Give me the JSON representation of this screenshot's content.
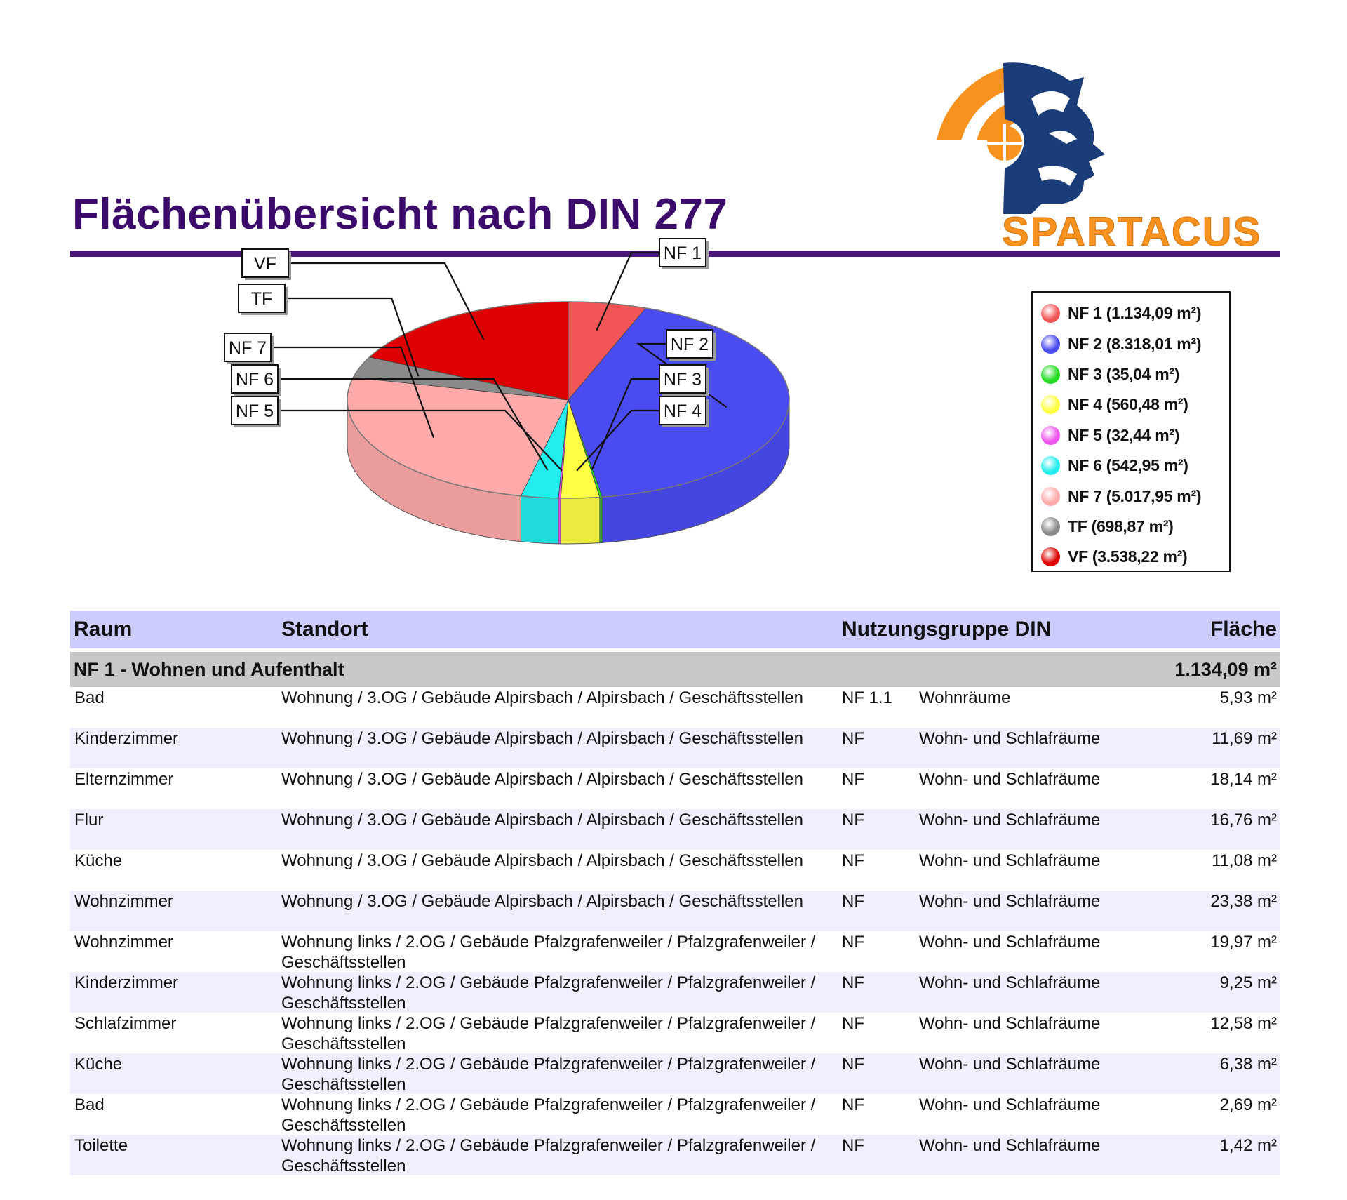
{
  "header": {
    "title": "Flächenübersicht nach DIN 277",
    "logo_text": "SPARTACUS"
  },
  "colors": {
    "title": "#3b0a6b",
    "rule": "#4a1578",
    "logo_orange": "#f7921e",
    "logo_blue": "#1a3d7a",
    "table_header_bg": "#ccccff",
    "group_bg": "#c8c8c8",
    "row_alt_bg": "#efefff"
  },
  "chart_data": {
    "type": "pie",
    "categories": [
      "NF 1",
      "NF 2",
      "NF 3",
      "NF 4",
      "NF 5",
      "NF 6",
      "NF 7",
      "TF",
      "VF"
    ],
    "values": [
      1134.09,
      8318.01,
      35.04,
      560.48,
      32.44,
      542.95,
      5017.95,
      698.87,
      3538.22
    ],
    "unit": "m²",
    "colors": [
      "#f25555",
      "#4b4bf2",
      "#22dd22",
      "#ffff44",
      "#ee55ee",
      "#22eeee",
      "#ffaaaa",
      "#8a8a8a",
      "#dd0000"
    ],
    "legend": [
      "NF 1 (1.134,09 m²)",
      "NF 2 (8.318,01 m²)",
      "NF 3 (35,04 m²)",
      "NF 4 (560,48 m²)",
      "NF 5 (32,44 m²)",
      "NF 6 (542,95 m²)",
      "NF 7 (5.017,95 m²)",
      "TF (698,87 m²)",
      "VF (3.538,22 m²)"
    ],
    "slice_labels": [
      "NF 1",
      "NF 2",
      "NF 3",
      "NF 4",
      "NF 5",
      "NF 6",
      "NF 7",
      "TF",
      "VF"
    ],
    "legend_placement": "right",
    "style": "3d"
  },
  "table": {
    "headers": {
      "raum": "Raum",
      "standort": "Standort",
      "nutzungsgruppe": "Nutzungsgruppe DIN",
      "flaeche": "Fläche"
    },
    "group": {
      "label": "NF 1 - Wohnen und Aufenthalt",
      "total": "1.134,09 m²"
    },
    "rows": [
      {
        "raum": "Bad",
        "standort": "Wohnung / 3.OG / Gebäude Alpirsbach / Alpirsbach / Geschäftsstellen",
        "code": "NF 1.1",
        "desc": "Wohnräume",
        "area": "5,93 m²"
      },
      {
        "raum": "Kinderzimmer",
        "standort": "Wohnung / 3.OG / Gebäude Alpirsbach / Alpirsbach / Geschäftsstellen",
        "code": "NF",
        "desc": "Wohn- und Schlafräume",
        "area": "11,69 m²"
      },
      {
        "raum": "Elternzimmer",
        "standort": "Wohnung / 3.OG / Gebäude Alpirsbach / Alpirsbach / Geschäftsstellen",
        "code": "NF",
        "desc": "Wohn- und Schlafräume",
        "area": "18,14 m²"
      },
      {
        "raum": "Flur",
        "standort": "Wohnung / 3.OG / Gebäude Alpirsbach / Alpirsbach / Geschäftsstellen",
        "code": "NF",
        "desc": "Wohn- und Schlafräume",
        "area": "16,76 m²"
      },
      {
        "raum": "Küche",
        "standort": "Wohnung / 3.OG / Gebäude Alpirsbach / Alpirsbach / Geschäftsstellen",
        "code": "NF",
        "desc": "Wohn- und Schlafräume",
        "area": "11,08 m²"
      },
      {
        "raum": "Wohnzimmer",
        "standort": "Wohnung / 3.OG / Gebäude Alpirsbach / Alpirsbach / Geschäftsstellen",
        "code": "NF",
        "desc": "Wohn- und Schlafräume",
        "area": "23,38 m²"
      },
      {
        "raum": "Wohnzimmer",
        "standort": "Wohnung links / 2.OG / Gebäude Pfalzgrafenweiler / Pfalzgrafenweiler / Geschäftsstellen",
        "code": "NF",
        "desc": "Wohn- und Schlafräume",
        "area": "19,97 m²"
      },
      {
        "raum": "Kinderzimmer",
        "standort": "Wohnung links / 2.OG / Gebäude Pfalzgrafenweiler / Pfalzgrafenweiler / Geschäftsstellen",
        "code": "NF",
        "desc": "Wohn- und Schlafräume",
        "area": "9,25 m²"
      },
      {
        "raum": "Schlafzimmer",
        "standort": "Wohnung links / 2.OG / Gebäude Pfalzgrafenweiler / Pfalzgrafenweiler / Geschäftsstellen",
        "code": "NF",
        "desc": "Wohn- und Schlafräume",
        "area": "12,58 m²"
      },
      {
        "raum": "Küche",
        "standort": "Wohnung links / 2.OG / Gebäude Pfalzgrafenweiler / Pfalzgrafenweiler / Geschäftsstellen",
        "code": "NF",
        "desc": "Wohn- und Schlafräume",
        "area": "6,38 m²"
      },
      {
        "raum": "Bad",
        "standort": "Wohnung links / 2.OG / Gebäude Pfalzgrafenweiler / Pfalzgrafenweiler / Geschäftsstellen",
        "code": "NF",
        "desc": "Wohn- und Schlafräume",
        "area": "2,69 m²"
      },
      {
        "raum": "Toilette",
        "standort": "Wohnung links / 2.OG / Gebäude Pfalzgrafenweiler / Pfalzgrafenweiler / Geschäftsstellen",
        "code": "NF",
        "desc": "Wohn- und Schlafräume",
        "area": "1,42 m²"
      }
    ]
  }
}
